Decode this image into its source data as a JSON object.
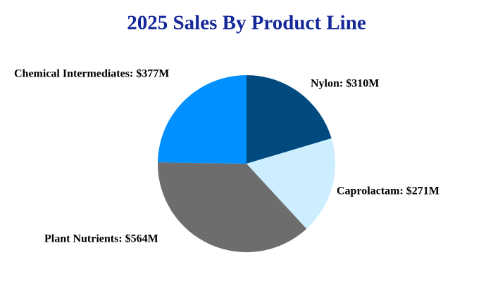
{
  "chart_data": {
    "type": "pie",
    "title": "2025 Sales By Product Line",
    "values": [
      310,
      271,
      564,
      377
    ],
    "value_labels": [
      "Nylon: $310M",
      "Caprolactam: $271M",
      "Plant Nutrients: $564M",
      "Chemical Intermediates: $377M"
    ],
    "colors": [
      "#004a7f",
      "#cceeff",
      "#6d6d6d",
      "#0090ff"
    ]
  }
}
